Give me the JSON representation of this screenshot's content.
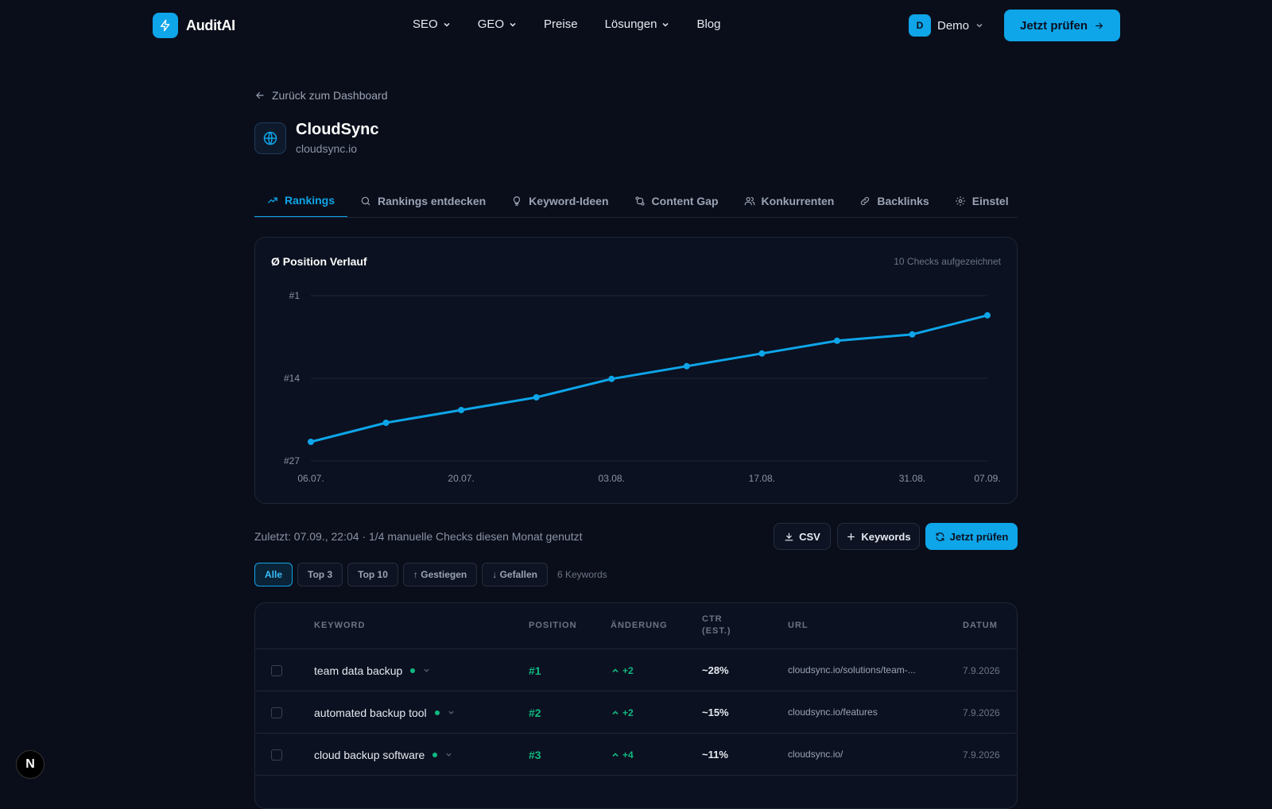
{
  "app": {
    "name": "AuditAI"
  },
  "nav": {
    "links": [
      {
        "label": "SEO",
        "dropdown": true
      },
      {
        "label": "GEO",
        "dropdown": true
      },
      {
        "label": "Preise",
        "dropdown": false
      },
      {
        "label": "Lösungen",
        "dropdown": true
      },
      {
        "label": "Blog",
        "dropdown": false
      }
    ],
    "user": {
      "initial": "D",
      "name": "Demo"
    },
    "cta": "Jetzt prüfen"
  },
  "header": {
    "back": "Zurück zum Dashboard",
    "site_name": "CloudSync",
    "site_domain": "cloudsync.io"
  },
  "tabs": [
    {
      "label": "Rankings",
      "icon": "trending-up-icon",
      "active": true
    },
    {
      "label": "Rankings entdecken",
      "icon": "search-icon",
      "active": false
    },
    {
      "label": "Keyword-Ideen",
      "icon": "lightbulb-icon",
      "active": false
    },
    {
      "label": "Content Gap",
      "icon": "compare-icon",
      "active": false
    },
    {
      "label": "Konkurrenten",
      "icon": "users-icon",
      "active": false
    },
    {
      "label": "Backlinks",
      "icon": "link-icon",
      "active": false
    },
    {
      "label": "Einstel",
      "icon": "gear-icon",
      "active": false
    }
  ],
  "chart_card": {
    "title": "Ø Position Verlauf",
    "subtitle": "10 Checks aufgezeichnet"
  },
  "chart_data": {
    "type": "line",
    "title": "Ø Position Verlauf",
    "y_inverted": true,
    "ylim": [
      27,
      1
    ],
    "y_ticks": [
      "#1",
      "#14",
      "#27"
    ],
    "y_tick_values": [
      1,
      14,
      27
    ],
    "x_tick_labels": [
      "06.07.",
      "20.07.",
      "03.08.",
      "17.08.",
      "31.08.",
      "07.09."
    ],
    "x_tick_indices": [
      0,
      2,
      4,
      6,
      8,
      9
    ],
    "series": [
      {
        "values": [
          24.0,
          21.0,
          19.0,
          17.0,
          14.1,
          12.1,
          10.1,
          8.1,
          7.1,
          4.1
        ],
        "color": "#0ea5e9"
      }
    ],
    "grid": true
  },
  "toolbar": {
    "last_check": "Zuletzt: 07.09., 22:04 · 1/4 manuelle Checks diesen Monat genutzt",
    "csv": "CSV",
    "keywords": "Keywords",
    "check": "Jetzt prüfen"
  },
  "filters": {
    "chips": [
      {
        "label": "Alle",
        "active": true
      },
      {
        "label": "Top 3",
        "active": false
      },
      {
        "label": "Top 10",
        "active": false
      },
      {
        "label": "↑ Gestiegen",
        "active": false
      },
      {
        "label": "↓ Gefallen",
        "active": false
      }
    ],
    "count": "6 Keywords"
  },
  "table": {
    "headers": {
      "keyword": "Keyword",
      "position": "Position",
      "change": "Änderung",
      "ctr": "CTR (est.)",
      "url": "URL",
      "date": "Datum"
    },
    "rows": [
      {
        "keyword": "team data backup",
        "position": "#1",
        "change": "+2",
        "ctr": "~28%",
        "url": "cloudsync.io/solutions/team-...",
        "date": "7.9.2026"
      },
      {
        "keyword": "automated backup tool",
        "position": "#2",
        "change": "+2",
        "ctr": "~15%",
        "url": "cloudsync.io/features",
        "date": "7.9.2026"
      },
      {
        "keyword": "cloud backup software",
        "position": "#3",
        "change": "+4",
        "ctr": "~11%",
        "url": "cloudsync.io/",
        "date": "7.9.2026"
      }
    ]
  },
  "colors": {
    "accent": "#0ea5e9",
    "success": "#10b981",
    "background": "#0a0e1a"
  }
}
